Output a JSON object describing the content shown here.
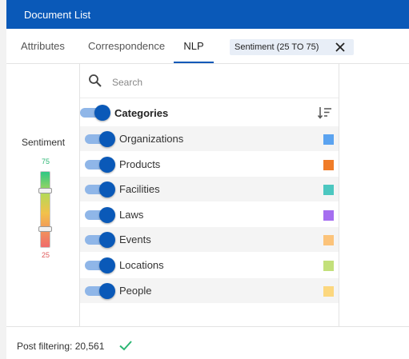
{
  "header": {
    "title": "Document List"
  },
  "tabs": [
    {
      "label": "Attributes",
      "active": false
    },
    {
      "label": "Correspondence",
      "active": false
    },
    {
      "label": "NLP",
      "active": true
    }
  ],
  "filter_chip": {
    "label": "Sentiment (25 TO 75)",
    "close_icon": "close-icon"
  },
  "sentiment": {
    "title": "Sentiment",
    "max_label": "75",
    "min_label": "25",
    "upper_value": 75,
    "lower_value": 25,
    "range": [
      0,
      100
    ]
  },
  "search": {
    "placeholder": "Search",
    "value": "",
    "icon": "search-icon"
  },
  "categories": {
    "header": "Categories",
    "enabled": true,
    "sort_icon": "sort-icon",
    "items": [
      {
        "label": "Organizations",
        "color": "#5ba3f0",
        "enabled": true
      },
      {
        "label": "Products",
        "color": "#f07c28",
        "enabled": true
      },
      {
        "label": "Facilities",
        "color": "#4cc7c0",
        "enabled": true
      },
      {
        "label": "Laws",
        "color": "#a56ef0",
        "enabled": true
      },
      {
        "label": "Events",
        "color": "#fcc37a",
        "enabled": true
      },
      {
        "label": "Locations",
        "color": "#c3e07a",
        "enabled": true
      },
      {
        "label": "People",
        "color": "#fcd77e",
        "enabled": true
      }
    ]
  },
  "footer": {
    "label": "Post filtering: 20,561",
    "check_color": "#2bb673"
  },
  "colors": {
    "accent": "#0a59b8"
  }
}
